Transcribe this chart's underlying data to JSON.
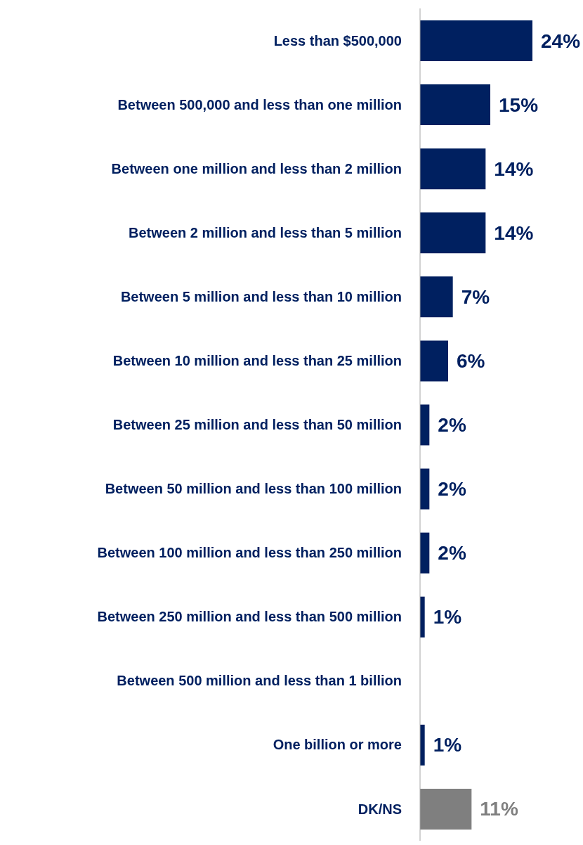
{
  "chart_data": {
    "type": "bar",
    "orientation": "horizontal",
    "categories": [
      "Less than $500,000",
      "Between 500,000 and less than one million",
      "Between one million and less than 2 million",
      "Between 2 million and less than 5 million",
      "Between 5 million and less than 10 million",
      "Between 10 million and less than 25 million",
      "Between 25 million and less than 50 million",
      "Between 50 million and less than 100 million",
      "Between 100 million and less than 250 million",
      "Between 250 million and less than 500 million",
      "Between 500 million and less than 1 billion",
      "One billion or more",
      "DK/NS"
    ],
    "values": [
      24,
      15,
      14,
      14,
      7,
      6,
      2,
      2,
      2,
      1,
      null,
      1,
      11
    ],
    "colors": [
      "#002060",
      "#002060",
      "#002060",
      "#002060",
      "#002060",
      "#002060",
      "#002060",
      "#002060",
      "#002060",
      "#002060",
      "#002060",
      "#002060",
      "#7f7f7f"
    ],
    "value_labels": [
      "24%",
      "15%",
      "14%",
      "14%",
      "7%",
      "6%",
      "2%",
      "2%",
      "2%",
      "1%",
      null,
      "1%",
      "11%"
    ],
    "legend": false,
    "grid": false
  }
}
